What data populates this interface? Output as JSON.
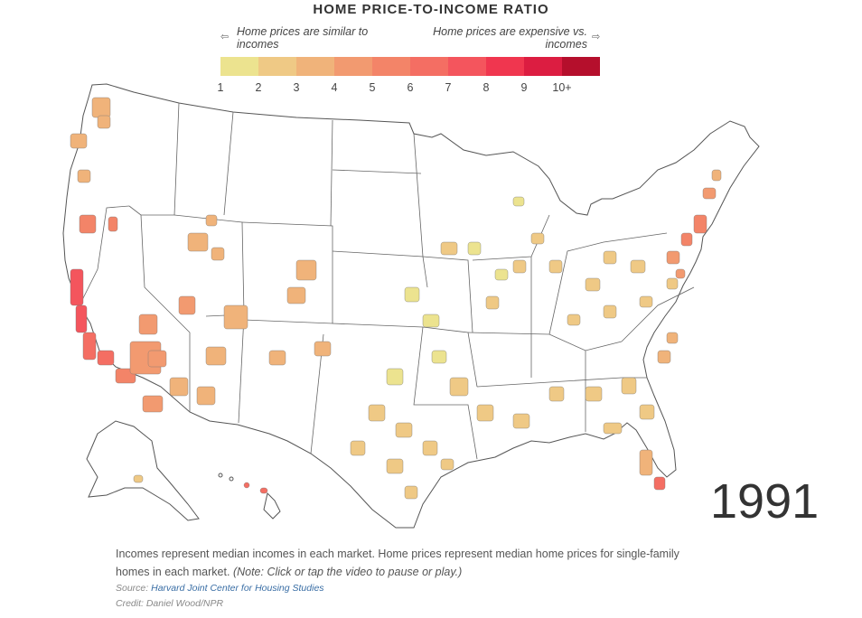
{
  "title": "HOME PRICE-TO-INCOME RATIO",
  "legend": {
    "left_arrow": "⇦",
    "right_arrow": "⇨",
    "left_note": "Home prices are similar to incomes",
    "right_note": "Home prices are expensive vs. incomes",
    "ticks": [
      "1",
      "2",
      "3",
      "4",
      "5",
      "6",
      "7",
      "8",
      "9",
      "10+"
    ],
    "colors": [
      "#ece38f",
      "#efc985",
      "#f0b37a",
      "#f29a70",
      "#f38468",
      "#f46e63",
      "#f4555d",
      "#f0364f",
      "#dc1d41",
      "#b50f2c"
    ]
  },
  "map": {
    "region": "United States",
    "year": "1991",
    "regions_colored": [
      {
        "area": "California coast",
        "ratio_bin": "7"
      },
      {
        "area": "Southern California",
        "ratio_bin": "6"
      },
      {
        "area": "Arizona / Nevada",
        "ratio_bin": "4"
      },
      {
        "area": "Northeast corridor",
        "ratio_bin": "5"
      },
      {
        "area": "Hawaii",
        "ratio_bin": "6"
      },
      {
        "area": "South Florida",
        "ratio_bin": "6"
      },
      {
        "area": "Midwest plains",
        "ratio_bin": "1-2"
      },
      {
        "area": "Southeast",
        "ratio_bin": "2-3"
      }
    ]
  },
  "caption": {
    "text": "Incomes represent median incomes in each market. Home prices represent median home prices for single-family homes in each market.",
    "note": "(Note: Click or tap the video to pause or play.)"
  },
  "source": {
    "label": "Source:",
    "name": "Harvard Joint Center for Housing Studies"
  },
  "credit": "Credit: Daniel Wood/NPR"
}
